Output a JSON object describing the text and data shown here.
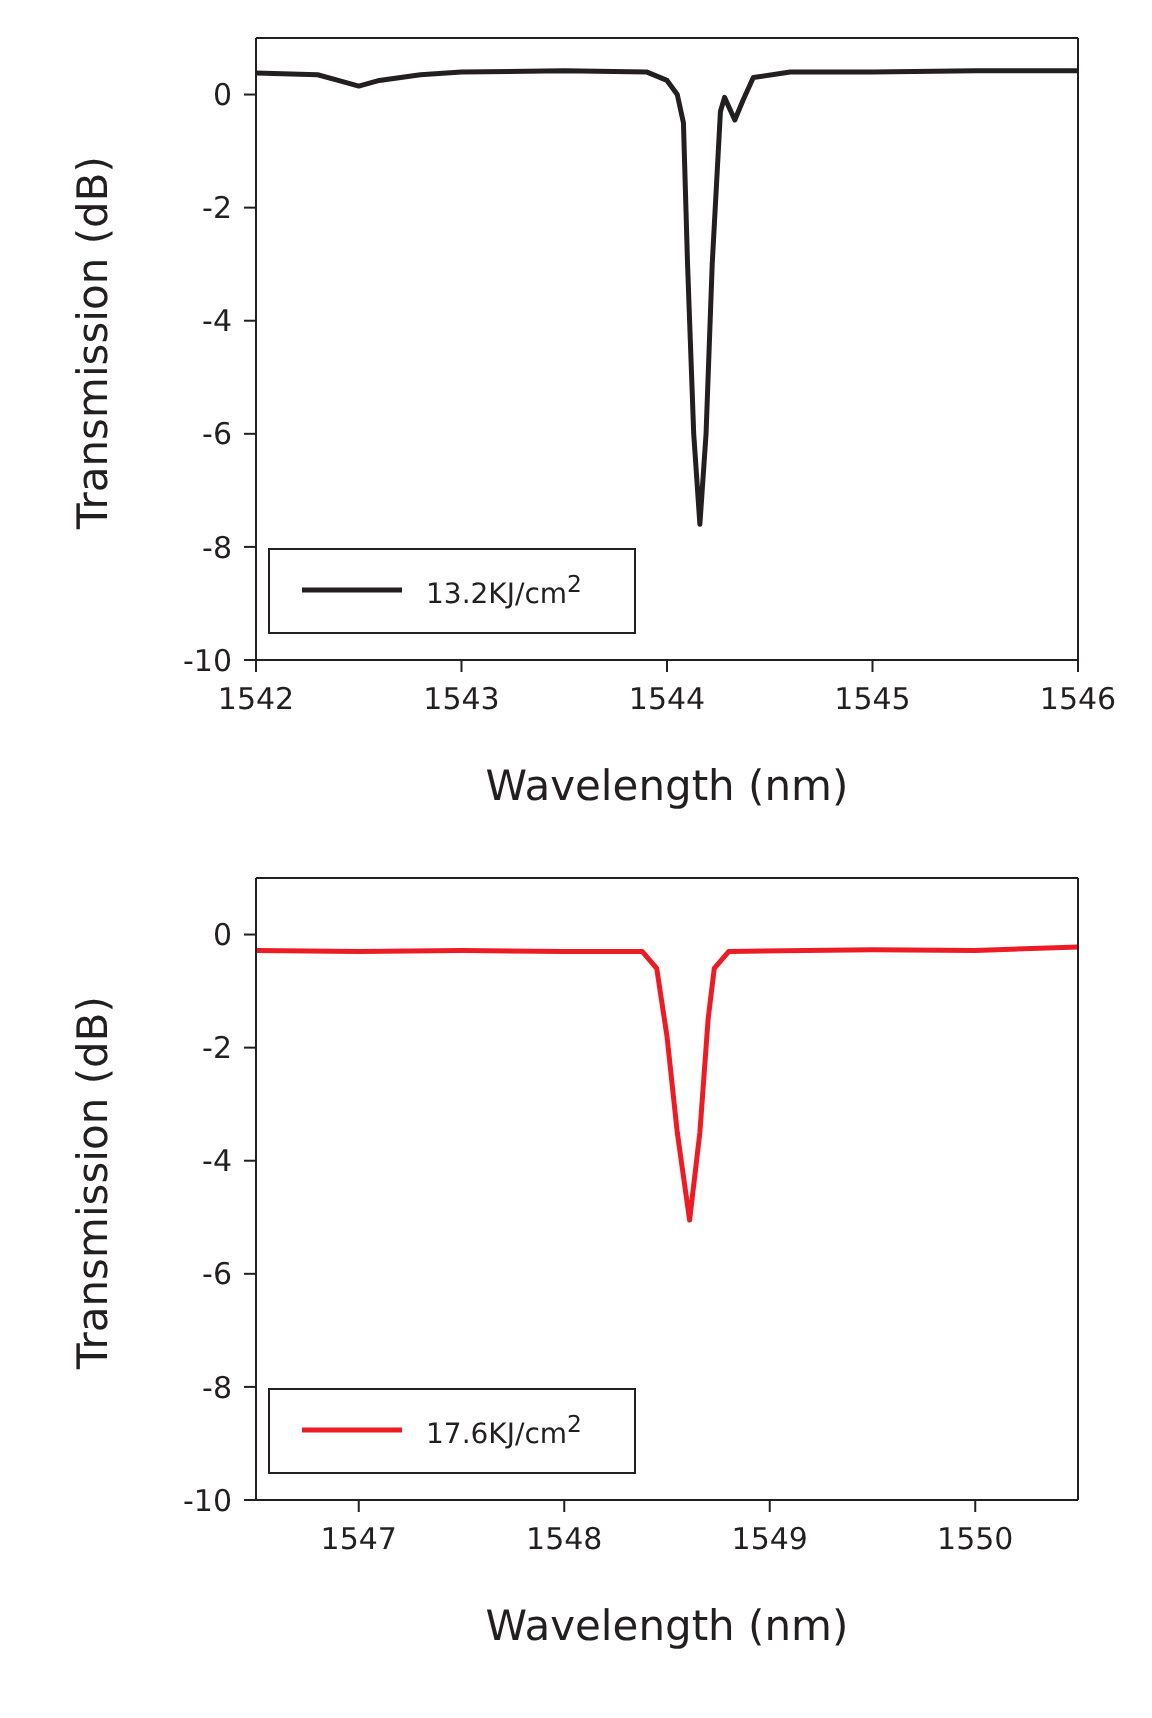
{
  "chart_data": [
    {
      "type": "line",
      "xlabel": "Wavelength (nm)",
      "ylabel": "Transmission (dB)",
      "xlim": [
        1542,
        1546
      ],
      "xticks": [
        1542,
        1543,
        1544,
        1545,
        1546
      ],
      "ylim": [
        -10,
        1
      ],
      "yticks": [
        -10,
        -8,
        -6,
        -4,
        -2,
        0
      ],
      "legend": "bottom left",
      "marker": "none",
      "line_style": "solid",
      "series": [
        {
          "name": "13.2KJ/cm$^{2}$",
          "color": "#231f20",
          "x": [
            1542.0,
            1542.3,
            1542.4,
            1542.5,
            1542.6,
            1542.8,
            1543.0,
            1543.5,
            1543.9,
            1544.0,
            1544.05,
            1544.08,
            1544.1,
            1544.13,
            1544.16,
            1544.19,
            1544.22,
            1544.26,
            1544.28,
            1544.33,
            1544.37,
            1544.42,
            1544.6,
            1545.0,
            1545.5,
            1546.0
          ],
          "values": [
            0.38,
            0.35,
            0.25,
            0.15,
            0.25,
            0.35,
            0.4,
            0.42,
            0.4,
            0.25,
            0.0,
            -0.5,
            -3,
            -6,
            -7.6,
            -6,
            -3,
            -0.3,
            -0.05,
            -0.45,
            -0.1,
            0.3,
            0.4,
            0.4,
            0.42,
            0.42
          ]
        }
      ]
    },
    {
      "type": "line",
      "xlabel": "Wavelength (nm)",
      "ylabel": "Transmission (dB)",
      "xlim": [
        1546.5,
        1550.5
      ],
      "xticks": [
        1547,
        1548,
        1549,
        1550
      ],
      "ylim": [
        -10,
        1
      ],
      "yticks": [
        -10,
        -8,
        -6,
        -4,
        -2,
        0
      ],
      "legend": "bottom left",
      "marker": "none",
      "line_style": "solid",
      "series": [
        {
          "name": "17.6KJ/cm$^{2}$",
          "color": "#ed1c24",
          "x": [
            1546.5,
            1547.0,
            1547.5,
            1548.0,
            1548.38,
            1548.45,
            1548.5,
            1548.55,
            1548.61,
            1548.66,
            1548.7,
            1548.73,
            1548.8,
            1549.5,
            1550.0,
            1550.5
          ],
          "values": [
            -0.28,
            -0.3,
            -0.28,
            -0.3,
            -0.3,
            -0.6,
            -1.8,
            -3.5,
            -5.05,
            -3.5,
            -1.5,
            -0.6,
            -0.3,
            -0.27,
            -0.28,
            -0.22
          ]
        }
      ]
    }
  ]
}
